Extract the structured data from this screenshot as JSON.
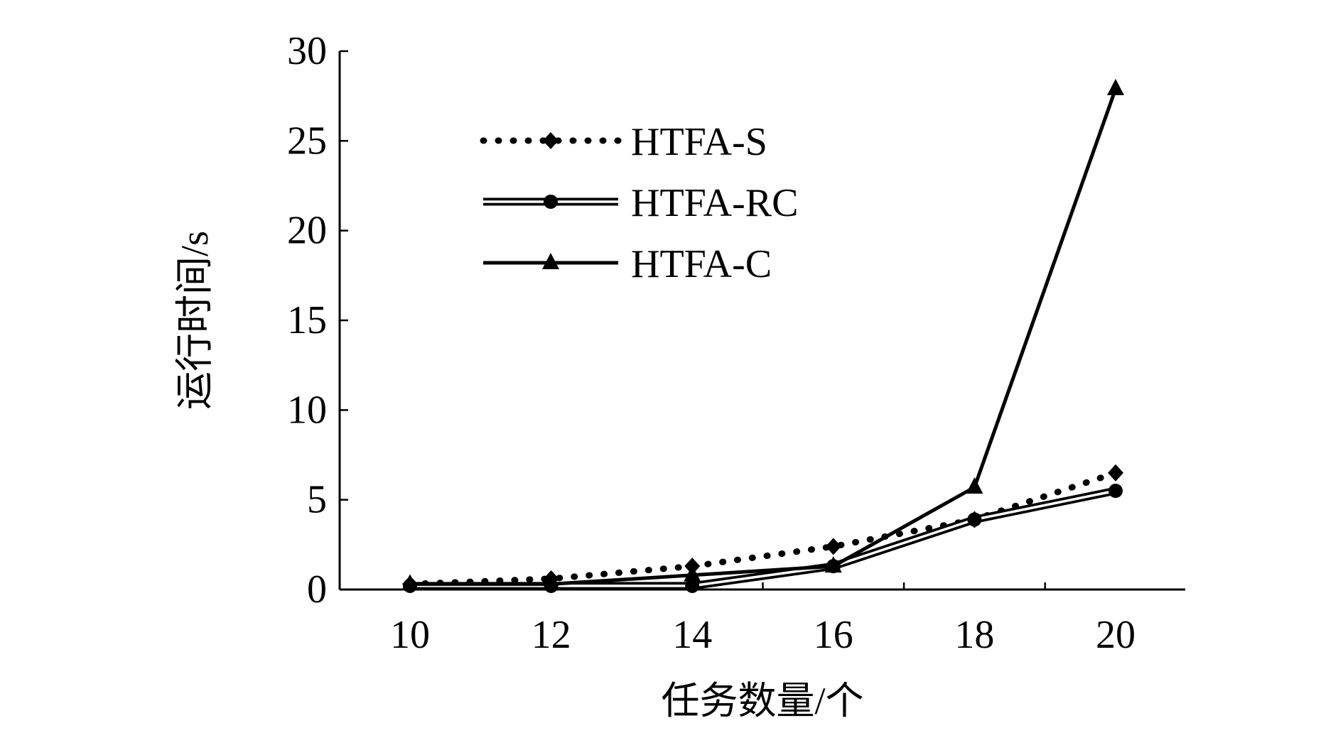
{
  "chart_data": {
    "type": "line",
    "xlabel": "任务数量/个",
    "ylabel": "运行时间/s",
    "x": [
      10,
      12,
      14,
      16,
      18,
      20
    ],
    "xticks": [
      "10",
      "12",
      "14",
      "16",
      "18",
      "20"
    ],
    "yticks": [
      "0",
      "5",
      "10",
      "15",
      "20",
      "25",
      "30"
    ],
    "ylim": [
      0,
      30
    ],
    "grid": false,
    "legend_position": "top-left",
    "series": [
      {
        "name": "HTFA-S",
        "style": "dotted",
        "marker": "diamond",
        "values": [
          0.3,
          0.6,
          1.3,
          2.4,
          3.9,
          6.5
        ]
      },
      {
        "name": "HTFA-RC",
        "style": "double",
        "marker": "circle",
        "values": [
          0.2,
          0.2,
          0.2,
          1.3,
          3.9,
          5.5
        ]
      },
      {
        "name": "HTFA-C",
        "style": "solid",
        "marker": "triangle",
        "values": [
          0.3,
          0.3,
          0.8,
          1.3,
          5.7,
          27.9
        ]
      }
    ]
  }
}
